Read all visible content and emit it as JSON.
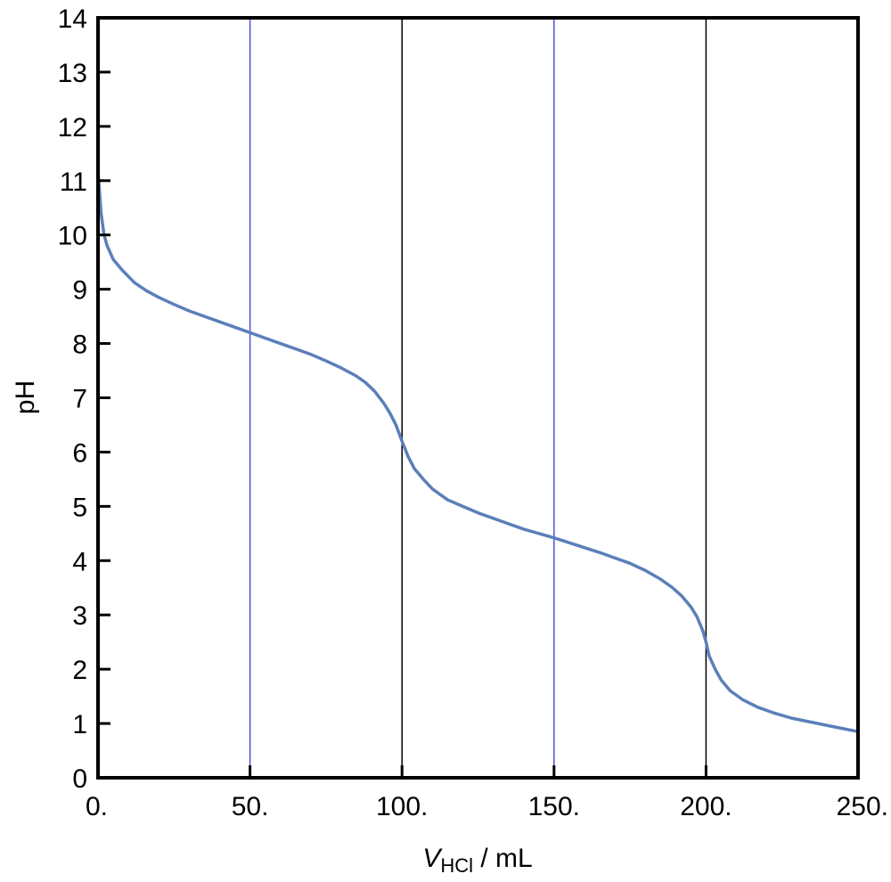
{
  "chart_data": {
    "type": "line",
    "xlabel": {
      "symbol": "V",
      "subscript": "HCl",
      "unit": " / mL"
    },
    "ylabel": "pH",
    "xlim": [
      0,
      250
    ],
    "ylim": [
      0,
      14
    ],
    "x_ticks": [
      0,
      50,
      100,
      150,
      200,
      250
    ],
    "x_tick_labels": [
      "0.",
      "50.",
      "100.",
      "150.",
      "200.",
      "250."
    ],
    "y_ticks": [
      0,
      1,
      2,
      3,
      4,
      5,
      6,
      7,
      8,
      9,
      10,
      11,
      12,
      13,
      14
    ],
    "y_tick_labels": [
      "0",
      "1",
      "2",
      "3",
      "4",
      "5",
      "6",
      "7",
      "8",
      "9",
      "10",
      "11",
      "12",
      "13",
      "14"
    ],
    "reference_lines": [
      {
        "x": 50,
        "color": "#4a55d6"
      },
      {
        "x": 100,
        "color": "#000000"
      },
      {
        "x": 150,
        "color": "#4a55d6"
      },
      {
        "x": 200,
        "color": "#000000"
      }
    ],
    "series": [
      {
        "color": "#5b7fb9",
        "points": [
          [
            0,
            11.2
          ],
          [
            0.5,
            10.8
          ],
          [
            1,
            10.4
          ],
          [
            2,
            10.0
          ],
          [
            3,
            9.8
          ],
          [
            5,
            9.55
          ],
          [
            8,
            9.35
          ],
          [
            12,
            9.12
          ],
          [
            16,
            8.97
          ],
          [
            20,
            8.85
          ],
          [
            25,
            8.72
          ],
          [
            30,
            8.6
          ],
          [
            35,
            8.5
          ],
          [
            40,
            8.4
          ],
          [
            45,
            8.3
          ],
          [
            50,
            8.2
          ],
          [
            55,
            8.1
          ],
          [
            60,
            8.0
          ],
          [
            65,
            7.9
          ],
          [
            70,
            7.8
          ],
          [
            75,
            7.68
          ],
          [
            80,
            7.55
          ],
          [
            85,
            7.4
          ],
          [
            88,
            7.28
          ],
          [
            91,
            7.12
          ],
          [
            94,
            6.9
          ],
          [
            96,
            6.72
          ],
          [
            98,
            6.5
          ],
          [
            100,
            6.2
          ],
          [
            102,
            5.92
          ],
          [
            104,
            5.7
          ],
          [
            107,
            5.5
          ],
          [
            110,
            5.32
          ],
          [
            115,
            5.12
          ],
          [
            120,
            5.0
          ],
          [
            125,
            4.88
          ],
          [
            130,
            4.78
          ],
          [
            135,
            4.68
          ],
          [
            140,
            4.58
          ],
          [
            145,
            4.5
          ],
          [
            150,
            4.42
          ],
          [
            155,
            4.33
          ],
          [
            160,
            4.24
          ],
          [
            165,
            4.15
          ],
          [
            170,
            4.05
          ],
          [
            175,
            3.95
          ],
          [
            180,
            3.82
          ],
          [
            185,
            3.66
          ],
          [
            189,
            3.5
          ],
          [
            192,
            3.35
          ],
          [
            195,
            3.15
          ],
          [
            197,
            2.97
          ],
          [
            199,
            2.7
          ],
          [
            200,
            2.5
          ],
          [
            201,
            2.25
          ],
          [
            203,
            2.0
          ],
          [
            205,
            1.8
          ],
          [
            208,
            1.6
          ],
          [
            212,
            1.44
          ],
          [
            217,
            1.3
          ],
          [
            222,
            1.2
          ],
          [
            228,
            1.1
          ],
          [
            235,
            1.02
          ],
          [
            242,
            0.94
          ],
          [
            250,
            0.85
          ]
        ]
      }
    ]
  }
}
